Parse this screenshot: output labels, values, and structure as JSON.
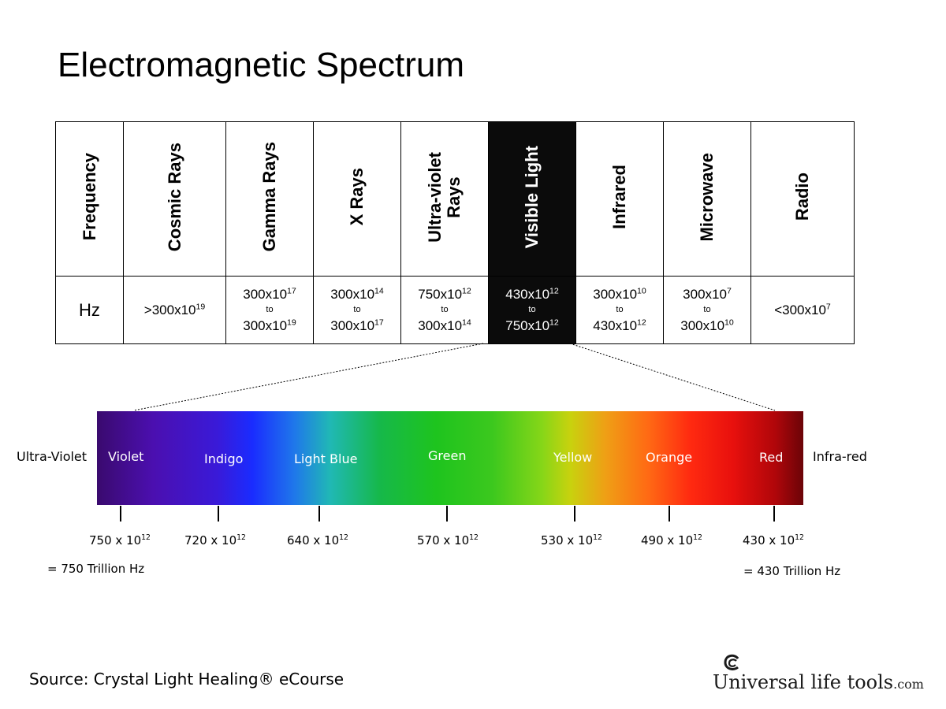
{
  "title": "Electromagnetic Spectrum",
  "table": {
    "headers": [
      "Frequency",
      "Cosmic Rays",
      "Gamma Rays",
      "X Rays",
      "Ultra-violet\nRays",
      "Visible Light",
      "Infrared",
      "Microwave",
      "Radio"
    ],
    "unit_label": "Hz",
    "to_word": "to",
    "highlight_color": "#0b0b0b",
    "cells": [
      {
        "type": "single",
        "prefix": ">",
        "base": "300x10",
        "exp": "19"
      },
      {
        "type": "range",
        "from_base": "300x10",
        "from_exp": "17",
        "to_base": "300x10",
        "to_exp": "19"
      },
      {
        "type": "range",
        "from_base": "300x10",
        "from_exp": "14",
        "to_base": "300x10",
        "to_exp": "17"
      },
      {
        "type": "range",
        "from_base": "750x10",
        "from_exp": "12",
        "to_base": "300x10",
        "to_exp": "14"
      },
      {
        "type": "range",
        "from_base": "430x10",
        "from_exp": "12",
        "to_base": "750x10",
        "to_exp": "12"
      },
      {
        "type": "range",
        "from_base": "300x10",
        "from_exp": "10",
        "to_base": "430x10",
        "to_exp": "12"
      },
      {
        "type": "range",
        "from_base": "300x10",
        "from_exp": "7",
        "to_base": "300x10",
        "to_exp": "10"
      },
      {
        "type": "single",
        "prefix": "<",
        "base": "300x10",
        "exp": "7"
      }
    ]
  },
  "spectrum": {
    "left_label": "Ultra-Violet",
    "right_label": "Infra-red",
    "bands": [
      "Violet",
      "Indigo",
      "Light Blue",
      "Green",
      "Yellow",
      "Orange",
      "Red"
    ],
    "frequencies": [
      {
        "base": "750 x 10",
        "exp": "12"
      },
      {
        "base": "720 x 10",
        "exp": "12"
      },
      {
        "base": "640 x 10",
        "exp": "12"
      },
      {
        "base": "570 x 10",
        "exp": "12"
      },
      {
        "base": "530 x 10",
        "exp": "12"
      },
      {
        "base": "490 x 10",
        "exp": "12"
      },
      {
        "base": "430 x 10",
        "exp": "12"
      }
    ],
    "low_note": "= 750 Trillion Hz",
    "high_note": "= 430 Trillion Hz"
  },
  "source": "Source: Crystal Light Healing® eCourse",
  "logo": {
    "text": "Universal life tools",
    "domain": ".com"
  }
}
